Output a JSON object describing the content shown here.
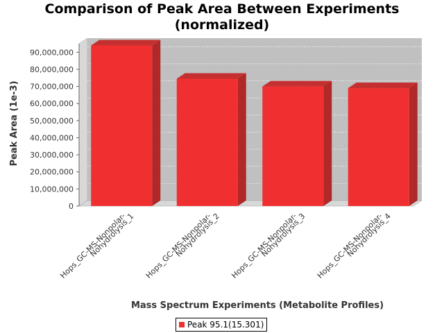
{
  "chart_data": {
    "type": "bar",
    "title_line1": "Comparison of Peak Area Between Experiments",
    "title_line2": "(normalized)",
    "xlabel": "Mass Spectrum Experiments (Metabolite Profiles)",
    "ylabel": "Peak Area (1e-3)",
    "categories": [
      [
        "Hops_GC-MS-Nonpolar-",
        "Nohydrolysis_1"
      ],
      [
        "Hops_GC-MS-Nonpolar-",
        "Nohydrolysis_2"
      ],
      [
        "Hops_GC-MS-Nonpolar-",
        "Nohydrolysis_3"
      ],
      [
        "Hops_GC-MS-Nonpolar-",
        "Nohydrolysis_4"
      ]
    ],
    "series": [
      {
        "name": "Peak 95.1(15.301)",
        "values": [
          94000000,
          74500000,
          70000000,
          69000000
        ]
      }
    ],
    "ylim": [
      0,
      95000000
    ],
    "yticks": [
      0,
      10000000,
      20000000,
      30000000,
      40000000,
      50000000,
      60000000,
      70000000,
      80000000,
      90000000
    ],
    "ytick_labels": [
      "0",
      "10,000,000",
      "20,000,000",
      "30,000,000",
      "40,000,000",
      "50,000,000",
      "60,000,000",
      "70,000,000",
      "80,000,000",
      "90,000,000"
    ],
    "grid": true,
    "legend_position": "bottom",
    "colors": {
      "bar": "#f03030",
      "bar_top": "#c43030",
      "bar_side": "#b02828",
      "plot_bg": "#c0c0c0",
      "plot_wall": "#d8d8d8"
    }
  }
}
